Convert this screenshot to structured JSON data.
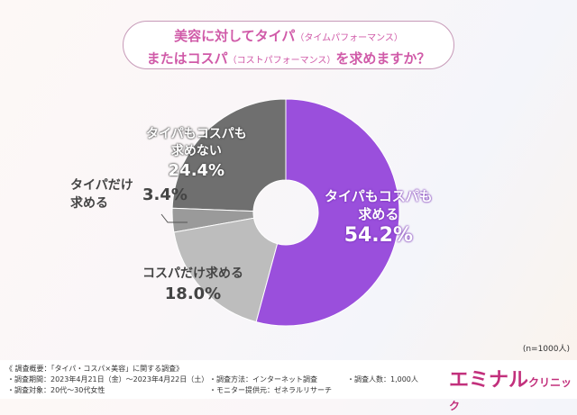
{
  "title": {
    "line1": "美容に対してタイパ",
    "line1_note": "（タイムパフォーマンス）",
    "line2": "またはコスパ",
    "line2_note": "（コストパフォーマンス）",
    "line2_end": "を求めますか？"
  },
  "chart_data": {
    "type": "pie",
    "donut": true,
    "start": "top",
    "direction": "clockwise",
    "slices": [
      {
        "label": "タイパもコスパも求める",
        "value": 54.2,
        "display": "54.2%",
        "color": "#9a4fdc"
      },
      {
        "label": "コスパだけ求める",
        "value": 18.0,
        "display": "18.0%",
        "color": "#bdbdbd"
      },
      {
        "label": "タイパだけ求める",
        "value": 3.4,
        "display": "3.4%",
        "color": "#9a9a9a"
      },
      {
        "label": "タイパもコスパも求めない",
        "value": 24.4,
        "display": "24.4%",
        "color": "#6f6f6f"
      }
    ]
  },
  "labels": {
    "both_l1": "タイパもコスパも",
    "both_l2": "求める",
    "cospa": "コスパだけ求める",
    "taipa_l1": "タイパだけ",
    "taipa_l2": "求める",
    "none_l1": "タイパもコスパも",
    "none_l2": "求めない"
  },
  "sample": "(n=1000人)",
  "footer": {
    "heading": "《 調査概要：「タイパ・コスパ×美容」に関する調査》",
    "period": "・調査期間：2023年4月21日（金）～2023年4月22日（土）",
    "target": "・調査対象：20代～30代女性",
    "method": "・調査方法：インターネット調査",
    "provider": "・モニター提供元：ゼネラルリサーチ",
    "count": "・調査人数：1,000人"
  },
  "logo": {
    "main": "エミナル",
    "sub": "クリニック"
  }
}
